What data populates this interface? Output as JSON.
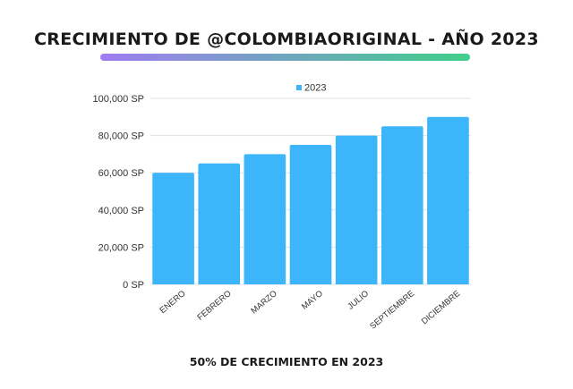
{
  "title": "CRECIMIENTO DE @COLOMBIAORIGINAL - AÑO 2023",
  "footer": "50% DE CRECIMIENTO EN 2023",
  "colors": {
    "bar": "#3db5fb",
    "title_bar_start": "#a07cf2",
    "title_bar_end": "#3fcf8a",
    "grid": "#e1e1e1"
  },
  "chart_data": {
    "type": "bar",
    "title": "CRECIMIENTO DE @COLOMBIAORIGINAL - AÑO 2023",
    "categories": [
      "ENERO",
      "FEBRERO",
      "MARZO",
      "MAYO",
      "JULIO",
      "SEPTIEMBRE",
      "DICIEMBRE"
    ],
    "series": [
      {
        "name": "2023",
        "values": [
          60000,
          65000,
          70000,
          75000,
          80000,
          85000,
          90000
        ]
      }
    ],
    "ylim": [
      0,
      100000
    ],
    "yticks": [
      0,
      20000,
      40000,
      60000,
      80000,
      100000
    ],
    "ytick_labels": [
      "0 SP",
      "20,000 SP",
      "40,000 SP",
      "60,000 SP",
      "80,000 SP",
      "100,000 SP"
    ],
    "xlabel": "",
    "ylabel": "",
    "grid": true,
    "legend": "top-center"
  }
}
